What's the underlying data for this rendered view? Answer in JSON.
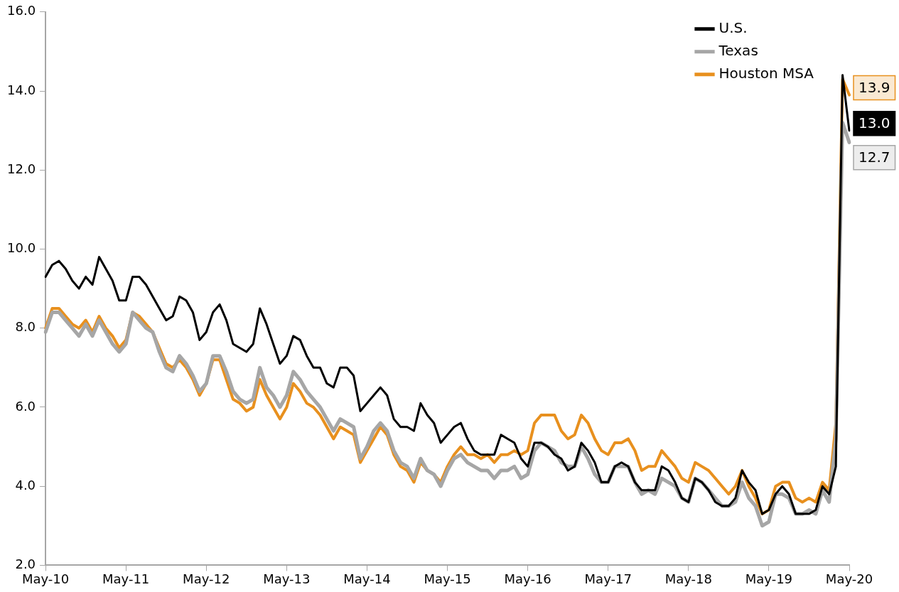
{
  "chart_data": {
    "type": "line",
    "categories": [
      "May-10",
      null,
      null,
      null,
      null,
      null,
      null,
      null,
      null,
      null,
      null,
      null,
      "May-11",
      null,
      null,
      null,
      null,
      null,
      null,
      null,
      null,
      null,
      null,
      null,
      "May-12",
      null,
      null,
      null,
      null,
      null,
      null,
      null,
      null,
      null,
      null,
      null,
      "May-13",
      null,
      null,
      null,
      null,
      null,
      null,
      null,
      null,
      null,
      null,
      null,
      "May-14",
      null,
      null,
      null,
      null,
      null,
      null,
      null,
      null,
      null,
      null,
      null,
      "May-15",
      null,
      null,
      null,
      null,
      null,
      null,
      null,
      null,
      null,
      null,
      null,
      "May-16",
      null,
      null,
      null,
      null,
      null,
      null,
      null,
      null,
      null,
      null,
      null,
      "May-17",
      null,
      null,
      null,
      null,
      null,
      null,
      null,
      null,
      null,
      null,
      null,
      "May-18",
      null,
      null,
      null,
      null,
      null,
      null,
      null,
      null,
      null,
      null,
      null,
      "May-19",
      null,
      null,
      null,
      null,
      null,
      null,
      null,
      null,
      null,
      null,
      null,
      "May-20"
    ],
    "series": [
      {
        "name": "U.S.",
        "color": "#000000",
        "values": [
          9.3,
          9.6,
          9.7,
          9.5,
          9.2,
          9.0,
          9.3,
          9.1,
          9.8,
          9.5,
          9.2,
          8.7,
          8.7,
          9.3,
          9.3,
          9.1,
          8.8,
          8.5,
          8.2,
          8.3,
          8.8,
          8.7,
          8.4,
          7.7,
          7.9,
          8.4,
          8.6,
          8.2,
          7.6,
          7.5,
          7.4,
          7.6,
          8.5,
          8.1,
          7.6,
          7.1,
          7.3,
          7.8,
          7.7,
          7.3,
          7.0,
          7.0,
          6.6,
          6.5,
          7.0,
          7.0,
          6.8,
          5.9,
          6.1,
          6.3,
          6.5,
          6.3,
          5.7,
          5.5,
          5.5,
          5.4,
          6.1,
          5.8,
          5.6,
          5.1,
          5.3,
          5.5,
          5.6,
          5.2,
          4.9,
          4.8,
          4.8,
          4.8,
          5.3,
          5.2,
          5.1,
          4.7,
          4.5,
          5.1,
          5.1,
          5.0,
          4.8,
          4.7,
          4.4,
          4.5,
          5.1,
          4.9,
          4.6,
          4.1,
          4.1,
          4.5,
          4.6,
          4.5,
          4.1,
          3.9,
          3.9,
          3.9,
          4.5,
          4.4,
          4.1,
          3.7,
          3.6,
          4.2,
          4.1,
          3.9,
          3.6,
          3.5,
          3.5,
          3.7,
          4.4,
          4.1,
          3.9,
          3.3,
          3.4,
          3.8,
          4.0,
          3.8,
          3.3,
          3.3,
          3.3,
          3.4,
          4.0,
          3.8,
          4.5,
          14.4,
          13.0
        ],
        "value_labels": [
          null,
          null,
          null,
          null,
          null,
          null,
          null,
          null,
          null,
          null,
          null,
          null,
          null,
          null,
          null,
          null,
          null,
          null,
          null,
          null,
          null,
          null,
          null,
          null,
          null,
          null,
          null,
          null,
          null,
          null,
          null,
          null,
          null,
          null,
          null,
          null,
          null,
          null,
          null,
          null,
          null,
          null,
          null,
          null,
          null,
          null,
          null,
          null,
          null,
          null,
          null,
          null,
          null,
          null,
          null,
          null,
          null,
          null,
          null,
          null,
          null,
          null,
          null,
          null,
          null,
          null,
          null,
          null,
          null,
          null,
          null,
          null,
          null,
          null,
          null,
          null,
          null,
          null,
          null,
          null,
          null,
          null,
          null,
          null,
          null,
          null,
          null,
          null,
          null,
          null,
          null,
          null,
          null,
          null,
          null,
          null,
          null,
          null,
          null,
          null,
          null,
          null,
          null,
          null,
          null,
          null,
          null,
          null,
          null,
          null,
          null,
          null,
          null,
          null,
          null,
          null,
          null,
          null,
          null,
          null,
          "13.0"
        ]
      },
      {
        "name": "Texas",
        "color": "#a6a6a6",
        "values": [
          7.9,
          8.4,
          8.4,
          8.2,
          8.0,
          7.8,
          8.1,
          7.8,
          8.2,
          7.9,
          7.6,
          7.4,
          7.6,
          8.4,
          8.2,
          8.0,
          7.9,
          7.4,
          7.0,
          6.9,
          7.3,
          7.1,
          6.8,
          6.4,
          6.6,
          7.3,
          7.3,
          6.9,
          6.4,
          6.2,
          6.1,
          6.2,
          7.0,
          6.5,
          6.3,
          6.0,
          6.3,
          6.9,
          6.7,
          6.4,
          6.2,
          6.0,
          5.7,
          5.4,
          5.7,
          5.6,
          5.5,
          4.7,
          5.0,
          5.4,
          5.6,
          5.4,
          4.9,
          4.6,
          4.5,
          4.2,
          4.7,
          4.4,
          4.3,
          4.0,
          4.4,
          4.7,
          4.8,
          4.6,
          4.5,
          4.4,
          4.4,
          4.2,
          4.4,
          4.4,
          4.5,
          4.2,
          4.3,
          4.9,
          5.1,
          5.0,
          4.9,
          4.6,
          4.5,
          4.5,
          5.0,
          4.7,
          4.3,
          4.1,
          4.1,
          4.5,
          4.5,
          4.5,
          4.1,
          3.8,
          3.9,
          3.8,
          4.2,
          4.1,
          4.0,
          3.7,
          3.6,
          4.2,
          4.1,
          3.9,
          3.7,
          3.5,
          3.5,
          3.6,
          4.1,
          3.7,
          3.5,
          3.0,
          3.1,
          3.8,
          3.8,
          3.7,
          3.3,
          3.3,
          3.4,
          3.3,
          3.9,
          3.6,
          5.2,
          13.2,
          12.7
        ],
        "value_labels": [
          null,
          null,
          null,
          null,
          null,
          null,
          null,
          null,
          null,
          null,
          null,
          null,
          null,
          null,
          null,
          null,
          null,
          null,
          null,
          null,
          null,
          null,
          null,
          null,
          null,
          null,
          null,
          null,
          null,
          null,
          null,
          null,
          null,
          null,
          null,
          null,
          null,
          null,
          null,
          null,
          null,
          null,
          null,
          null,
          null,
          null,
          null,
          null,
          null,
          null,
          null,
          null,
          null,
          null,
          null,
          null,
          null,
          null,
          null,
          null,
          null,
          null,
          null,
          null,
          null,
          null,
          null,
          null,
          null,
          null,
          null,
          null,
          null,
          null,
          null,
          null,
          null,
          null,
          null,
          null,
          null,
          null,
          null,
          null,
          null,
          null,
          null,
          null,
          null,
          null,
          null,
          null,
          null,
          null,
          null,
          null,
          null,
          null,
          null,
          null,
          null,
          null,
          null,
          null,
          null,
          null,
          null,
          null,
          null,
          null,
          null,
          null,
          null,
          null,
          null,
          null,
          null,
          null,
          null,
          null,
          "12.7"
        ]
      },
      {
        "name": "Houston MSA",
        "color": "#e8901e",
        "values": [
          8.0,
          8.5,
          8.5,
          8.3,
          8.1,
          8.0,
          8.2,
          7.9,
          8.3,
          8.0,
          7.8,
          7.5,
          7.7,
          8.4,
          8.3,
          8.1,
          7.9,
          7.5,
          7.1,
          7.0,
          7.2,
          7.0,
          6.7,
          6.3,
          6.6,
          7.2,
          7.2,
          6.7,
          6.2,
          6.1,
          5.9,
          6.0,
          6.7,
          6.3,
          6.0,
          5.7,
          6.0,
          6.6,
          6.4,
          6.1,
          6.0,
          5.8,
          5.5,
          5.2,
          5.5,
          5.4,
          5.3,
          4.6,
          4.9,
          5.2,
          5.5,
          5.3,
          4.8,
          4.5,
          4.4,
          4.1,
          4.6,
          4.4,
          4.3,
          4.1,
          4.5,
          4.8,
          5.0,
          4.8,
          4.8,
          4.7,
          4.8,
          4.6,
          4.8,
          4.8,
          4.9,
          4.8,
          4.9,
          5.6,
          5.8,
          5.8,
          5.8,
          5.4,
          5.2,
          5.3,
          5.8,
          5.6,
          5.2,
          4.9,
          4.8,
          5.1,
          5.1,
          5.2,
          4.9,
          4.4,
          4.5,
          4.5,
          4.9,
          4.7,
          4.5,
          4.2,
          4.1,
          4.6,
          4.5,
          4.4,
          4.2,
          4.0,
          3.8,
          4.0,
          4.4,
          4.0,
          3.7,
          3.3,
          3.4,
          4.0,
          4.1,
          4.1,
          3.7,
          3.6,
          3.7,
          3.6,
          4.1,
          3.9,
          5.6,
          14.3,
          13.9
        ],
        "value_labels": [
          null,
          null,
          null,
          null,
          null,
          null,
          null,
          null,
          null,
          null,
          null,
          null,
          null,
          null,
          null,
          null,
          null,
          null,
          null,
          null,
          null,
          null,
          null,
          null,
          null,
          null,
          null,
          null,
          null,
          null,
          null,
          null,
          null,
          null,
          null,
          null,
          null,
          null,
          null,
          null,
          null,
          null,
          null,
          null,
          null,
          null,
          null,
          null,
          null,
          null,
          null,
          null,
          null,
          null,
          null,
          null,
          null,
          null,
          null,
          null,
          null,
          null,
          null,
          null,
          null,
          null,
          null,
          null,
          null,
          null,
          null,
          null,
          null,
          null,
          null,
          null,
          null,
          null,
          null,
          null,
          null,
          null,
          null,
          null,
          null,
          null,
          null,
          null,
          null,
          null,
          null,
          null,
          null,
          null,
          null,
          null,
          null,
          null,
          null,
          null,
          null,
          null,
          null,
          null,
          null,
          null,
          null,
          null,
          null,
          null,
          null,
          null,
          null,
          null,
          null,
          null,
          null,
          null,
          null,
          null,
          "13.9"
        ]
      }
    ],
    "ylim": [
      2,
      16
    ],
    "yticks": [
      {
        "value": 2,
        "label": "2.0"
      },
      {
        "value": 4,
        "label": "4.0"
      },
      {
        "value": 6,
        "label": "6.0"
      },
      {
        "value": 8,
        "label": "8.0"
      },
      {
        "value": 10,
        "label": "10.0"
      },
      {
        "value": 12,
        "label": "12.0"
      },
      {
        "value": 14,
        "label": "14.0"
      },
      {
        "value": 16,
        "label": "16.0"
      }
    ],
    "grid": false,
    "legend": "top right",
    "marker": "none",
    "line_style": "solid"
  }
}
